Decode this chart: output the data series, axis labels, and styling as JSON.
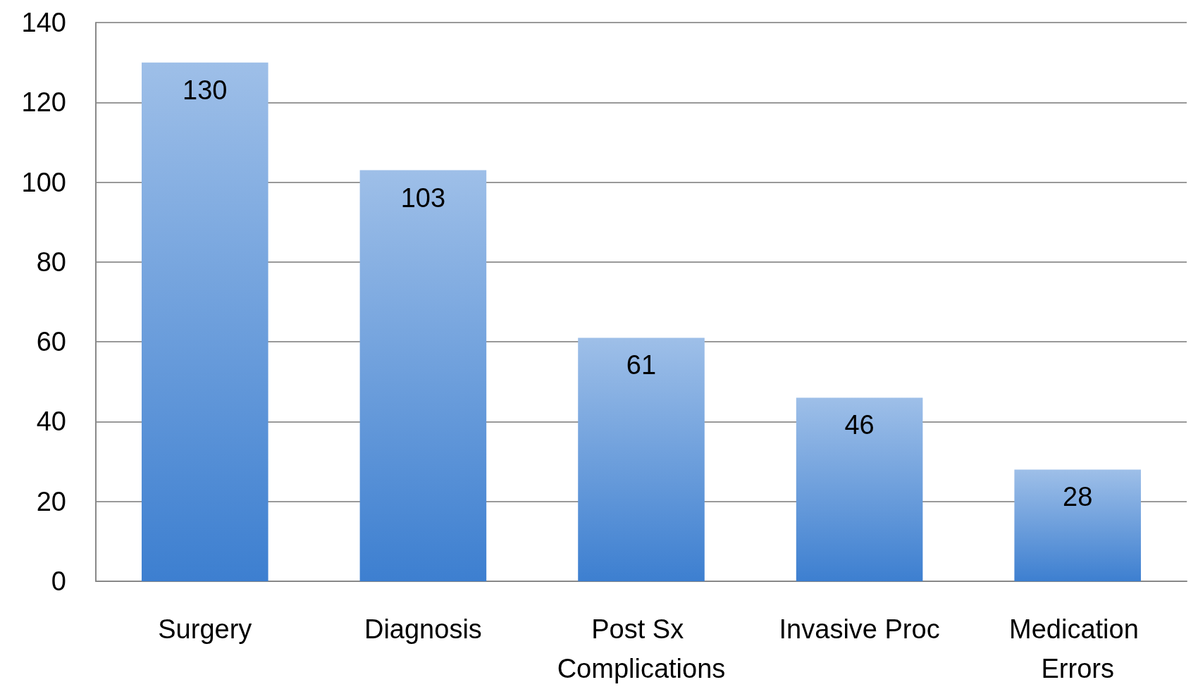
{
  "chart_data": {
    "type": "bar",
    "categories": [
      "Surgery",
      "Diagnosis",
      "Post Sx Complications",
      "Invasive Proc",
      "Medication Errors"
    ],
    "values": [
      130,
      103,
      61,
      46,
      28
    ],
    "color": "#3d7fd0",
    "ylim": [
      0,
      140
    ],
    "yticks": [
      0,
      20,
      40,
      60,
      80,
      100,
      120,
      140
    ],
    "grid": "y",
    "data_labels": true
  }
}
